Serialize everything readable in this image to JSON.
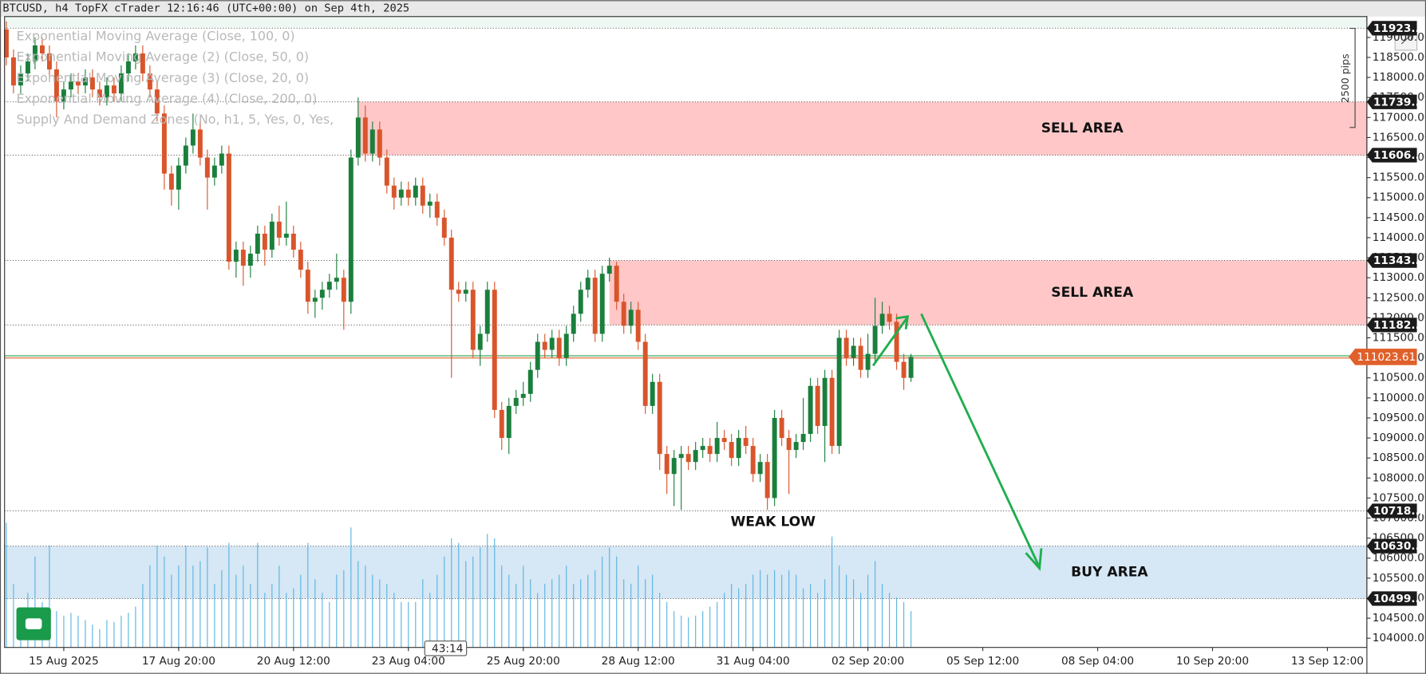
{
  "chart_data": {
    "type": "candlestick",
    "title": "BTCUSD, h4 TopFX cTrader 12:16:46 (UTC+00:00) on Sep 4th, 2025",
    "indicators": [
      "Exponential Moving Average (Close, 100, 0)",
      "Exponential Moving Average (2) (Close, 50, 0)",
      "Exponential Moving Average (3) (Close, 20, 0)",
      "Exponential Moving Average (4) (Close, 200, 0)",
      "Supply And Demand Zones (No, h1, 5, Yes, 0, Yes,"
    ],
    "up_color": "#1a7f3c",
    "down_color": "#d9552b",
    "volume_color": "#5ab4e0",
    "x": [
      "2025-08-13T20:00",
      "2025-08-14T00:00",
      "2025-08-14T04:00",
      "2025-08-14T08:00",
      "2025-08-14T12:00",
      "2025-08-14T16:00",
      "2025-08-14T20:00",
      "2025-08-15T00:00",
      "2025-08-15T04:00",
      "2025-08-15T08:00",
      "2025-08-15T12:00",
      "2025-08-15T16:00",
      "2025-08-15T20:00",
      "2025-08-16T00:00",
      "2025-08-16T04:00",
      "2025-08-16T08:00",
      "2025-08-16T12:00",
      "2025-08-16T16:00",
      "2025-08-16T20:00",
      "2025-08-17T00:00",
      "2025-08-17T04:00",
      "2025-08-17T08:00",
      "2025-08-17T12:00",
      "2025-08-17T16:00",
      "2025-08-17T20:00",
      "2025-08-18T00:00",
      "2025-08-18T04:00",
      "2025-08-18T08:00",
      "2025-08-18T12:00",
      "2025-08-18T16:00",
      "2025-08-18T20:00",
      "2025-08-19T00:00",
      "2025-08-19T04:00",
      "2025-08-19T08:00",
      "2025-08-19T12:00",
      "2025-08-19T16:00",
      "2025-08-19T20:00",
      "2025-08-20T00:00",
      "2025-08-20T04:00",
      "2025-08-20T08:00",
      "2025-08-20T12:00",
      "2025-08-20T16:00",
      "2025-08-20T20:00",
      "2025-08-21T00:00",
      "2025-08-21T04:00",
      "2025-08-21T08:00",
      "2025-08-21T12:00",
      "2025-08-21T16:00",
      "2025-08-21T20:00",
      "2025-08-22T00:00",
      "2025-08-22T04:00",
      "2025-08-22T08:00",
      "2025-08-22T12:00",
      "2025-08-22T16:00",
      "2025-08-22T20:00",
      "2025-08-23T00:00",
      "2025-08-23T04:00",
      "2025-08-23T08:00",
      "2025-08-23T12:00",
      "2025-08-23T16:00",
      "2025-08-23T20:00",
      "2025-08-24T00:00",
      "2025-08-24T04:00",
      "2025-08-24T08:00",
      "2025-08-24T12:00",
      "2025-08-24T16:00",
      "2025-08-24T20:00",
      "2025-08-25T00:00",
      "2025-08-25T04:00",
      "2025-08-25T08:00",
      "2025-08-25T12:00",
      "2025-08-25T16:00",
      "2025-08-25T20:00",
      "2025-08-26T00:00",
      "2025-08-26T04:00",
      "2025-08-26T08:00",
      "2025-08-26T12:00",
      "2025-08-26T16:00",
      "2025-08-26T20:00",
      "2025-08-27T00:00",
      "2025-08-27T04:00",
      "2025-08-27T08:00",
      "2025-08-27T12:00",
      "2025-08-27T16:00",
      "2025-08-27T20:00",
      "2025-08-28T00:00",
      "2025-08-28T04:00",
      "2025-08-28T08:00",
      "2025-08-28T12:00",
      "2025-08-28T16:00",
      "2025-08-28T20:00",
      "2025-08-29T00:00",
      "2025-08-29T04:00",
      "2025-08-29T08:00",
      "2025-08-29T12:00",
      "2025-08-29T16:00",
      "2025-08-29T20:00",
      "2025-08-30T00:00",
      "2025-08-30T04:00",
      "2025-08-30T08:00",
      "2025-08-30T12:00",
      "2025-08-30T16:00",
      "2025-08-30T20:00",
      "2025-08-31T00:00",
      "2025-08-31T04:00",
      "2025-08-31T08:00",
      "2025-08-31T12:00",
      "2025-08-31T16:00",
      "2025-08-31T20:00",
      "2025-09-01T00:00",
      "2025-09-01T04:00",
      "2025-09-01T08:00",
      "2025-09-01T12:00",
      "2025-09-01T16:00",
      "2025-09-01T20:00",
      "2025-09-02T00:00",
      "2025-09-02T04:00",
      "2025-09-02T08:00",
      "2025-09-02T12:00",
      "2025-09-02T16:00",
      "2025-09-02T20:00",
      "2025-09-03T00:00",
      "2025-09-03T04:00",
      "2025-09-03T08:00",
      "2025-09-03T12:00",
      "2025-09-03T16:00",
      "2025-09-03T20:00"
    ],
    "ohlc": [
      [
        119200,
        119400,
        118300,
        118500
      ],
      [
        118500,
        118700,
        117600,
        117800
      ],
      [
        117800,
        118300,
        117600,
        118100
      ],
      [
        118100,
        118600,
        117900,
        118400
      ],
      [
        118400,
        119000,
        118200,
        118800
      ],
      [
        118800,
        119000,
        118400,
        118600
      ],
      [
        118600,
        118800,
        118000,
        118200
      ],
      [
        118200,
        118400,
        117000,
        117400
      ],
      [
        117400,
        117900,
        117200,
        117700
      ],
      [
        117700,
        118100,
        117500,
        117900
      ],
      [
        117900,
        118100,
        117600,
        117800
      ],
      [
        117800,
        118200,
        117600,
        118000
      ],
      [
        118000,
        118200,
        117500,
        117700
      ],
      [
        117700,
        117900,
        117300,
        117500
      ],
      [
        117500,
        118000,
        117300,
        117800
      ],
      [
        117800,
        118000,
        117400,
        117600
      ],
      [
        117600,
        118300,
        117400,
        118100
      ],
      [
        118100,
        118600,
        117900,
        118400
      ],
      [
        118400,
        118800,
        118200,
        118600
      ],
      [
        118600,
        118800,
        117900,
        118100
      ],
      [
        118100,
        118300,
        117500,
        117700
      ],
      [
        117700,
        117900,
        116900,
        117100
      ],
      [
        117100,
        117300,
        115200,
        115600
      ],
      [
        115600,
        115800,
        114800,
        115200
      ],
      [
        115200,
        116000,
        114700,
        115800
      ],
      [
        115800,
        116500,
        115600,
        116300
      ],
      [
        116300,
        117100,
        116100,
        116700
      ],
      [
        116700,
        116900,
        115800,
        116000
      ],
      [
        116000,
        116200,
        114700,
        115500
      ],
      [
        115500,
        116000,
        115300,
        115800
      ],
      [
        115800,
        116300,
        115600,
        116100
      ],
      [
        116100,
        116300,
        113200,
        113400
      ],
      [
        113400,
        113900,
        113000,
        113700
      ],
      [
        113700,
        113900,
        112800,
        113300
      ],
      [
        113300,
        113800,
        113000,
        113600
      ],
      [
        113600,
        114300,
        113400,
        114100
      ],
      [
        114100,
        114300,
        113300,
        113700
      ],
      [
        113700,
        114600,
        113500,
        114400
      ],
      [
        114400,
        114800,
        113800,
        114000
      ],
      [
        114000,
        114900,
        113800,
        114100
      ],
      [
        114100,
        114300,
        113500,
        113700
      ],
      [
        113700,
        113900,
        113000,
        113200
      ],
      [
        113200,
        113400,
        112100,
        112400
      ],
      [
        112400,
        112700,
        112000,
        112500
      ],
      [
        112500,
        112900,
        112200,
        112700
      ],
      [
        112700,
        113100,
        112500,
        112900
      ],
      [
        112900,
        113600,
        112700,
        113000
      ],
      [
        113000,
        113200,
        111700,
        112400
      ],
      [
        112400,
        116200,
        112100,
        116000
      ],
      [
        116000,
        117500,
        115800,
        117000
      ],
      [
        117000,
        117300,
        115900,
        116100
      ],
      [
        116100,
        116900,
        115900,
        116700
      ],
      [
        116700,
        116900,
        115800,
        116000
      ],
      [
        116000,
        116200,
        115100,
        115300
      ],
      [
        115300,
        115500,
        114700,
        115000
      ],
      [
        115000,
        115400,
        114800,
        115200
      ],
      [
        115200,
        115400,
        114800,
        115000
      ],
      [
        115000,
        115500,
        114800,
        115300
      ],
      [
        115300,
        115500,
        114600,
        114800
      ],
      [
        114800,
        115100,
        114500,
        114900
      ],
      [
        114900,
        115100,
        114300,
        114500
      ],
      [
        114500,
        114700,
        113800,
        114000
      ],
      [
        114000,
        114200,
        110500,
        112700
      ],
      [
        112700,
        112900,
        112400,
        112600
      ],
      [
        112600,
        112900,
        112400,
        112700
      ],
      [
        112700,
        112900,
        111000,
        111200
      ],
      [
        111200,
        111800,
        110800,
        111600
      ],
      [
        111600,
        112900,
        111400,
        112700
      ],
      [
        112700,
        112900,
        109500,
        109700
      ],
      [
        109700,
        109900,
        108700,
        109000
      ],
      [
        109000,
        110000,
        108600,
        109800
      ],
      [
        109800,
        110200,
        109600,
        110000
      ],
      [
        110000,
        110400,
        109800,
        110100
      ],
      [
        110100,
        110900,
        109900,
        110700
      ],
      [
        110700,
        111600,
        110500,
        111400
      ],
      [
        111400,
        111600,
        111000,
        111200
      ],
      [
        111200,
        111700,
        111000,
        111500
      ],
      [
        111500,
        111700,
        110800,
        111000
      ],
      [
        111000,
        111800,
        110800,
        111600
      ],
      [
        111600,
        112300,
        111400,
        112100
      ],
      [
        112100,
        112900,
        111900,
        112700
      ],
      [
        112700,
        113200,
        112500,
        113000
      ],
      [
        113000,
        113200,
        111400,
        111600
      ],
      [
        111600,
        113300,
        111400,
        113100
      ],
      [
        113100,
        113500,
        112900,
        113300
      ],
      [
        113300,
        113400,
        112200,
        112400
      ],
      [
        112400,
        112600,
        111600,
        111800
      ],
      [
        111800,
        112400,
        111600,
        112200
      ],
      [
        112200,
        112400,
        111200,
        111400
      ],
      [
        111400,
        111600,
        109600,
        109800
      ],
      [
        109800,
        110600,
        109600,
        110400
      ],
      [
        110400,
        110600,
        108200,
        108600
      ],
      [
        108600,
        108800,
        107600,
        108100
      ],
      [
        108100,
        108700,
        107300,
        108500
      ],
      [
        108500,
        108800,
        107200,
        108600
      ],
      [
        108600,
        108800,
        108200,
        108400
      ],
      [
        108400,
        108900,
        108200,
        108700
      ],
      [
        108700,
        109000,
        108500,
        108800
      ],
      [
        108800,
        109000,
        108400,
        108600
      ],
      [
        108600,
        109400,
        108400,
        109000
      ],
      [
        109000,
        109200,
        108700,
        108900
      ],
      [
        108900,
        109100,
        108300,
        108500
      ],
      [
        108500,
        109200,
        108300,
        109000
      ],
      [
        109000,
        109300,
        108600,
        108800
      ],
      [
        108800,
        109000,
        107900,
        108100
      ],
      [
        108100,
        108600,
        107900,
        108400
      ],
      [
        108400,
        108600,
        107200,
        107500
      ],
      [
        107500,
        109700,
        107300,
        109500
      ],
      [
        109500,
        109700,
        108800,
        109000
      ],
      [
        109000,
        109200,
        107600,
        108700
      ],
      [
        108700,
        109100,
        108500,
        108900
      ],
      [
        108900,
        110000,
        108700,
        109100
      ],
      [
        109100,
        110500,
        108900,
        110300
      ],
      [
        110300,
        110500,
        109100,
        109300
      ],
      [
        109300,
        110700,
        108400,
        110500
      ],
      [
        110500,
        110700,
        108600,
        108800
      ],
      [
        108800,
        111700,
        108600,
        111500
      ],
      [
        111500,
        111700,
        110800,
        111000
      ],
      [
        111000,
        111500,
        110800,
        111300
      ],
      [
        111300,
        111500,
        110500,
        110700
      ],
      [
        110700,
        111600,
        110500,
        111100
      ],
      [
        111100,
        112500,
        110900,
        111800
      ],
      [
        111800,
        112400,
        111600,
        112100
      ],
      [
        112100,
        112300,
        111700,
        111900
      ],
      [
        111900,
        112100,
        110700,
        110900
      ],
      [
        110900,
        111100,
        110200,
        110500
      ],
      [
        110500,
        111100,
        110400,
        111023.61
      ]
    ],
    "volume": [
      137,
      70,
      40,
      60,
      100,
      50,
      112,
      40,
      35,
      38,
      35,
      30,
      25,
      20,
      30,
      28,
      35,
      38,
      45,
      70,
      90,
      112,
      100,
      80,
      90,
      112,
      90,
      95,
      110,
      70,
      85,
      115,
      80,
      90,
      70,
      115,
      60,
      70,
      90,
      60,
      65,
      80,
      115,
      75,
      60,
      50,
      80,
      85,
      132,
      95,
      90,
      80,
      75,
      70,
      60,
      50,
      50,
      50,
      75,
      60,
      80,
      100,
      120,
      115,
      95,
      100,
      110,
      125,
      120,
      90,
      80,
      70,
      90,
      75,
      60,
      70,
      75,
      80,
      90,
      70,
      75,
      80,
      85,
      100,
      110,
      100,
      75,
      70,
      90,
      75,
      80,
      60,
      50,
      40,
      35,
      33,
      35,
      40,
      45,
      50,
      60,
      70,
      65,
      70,
      80,
      85,
      80,
      85,
      80,
      85,
      80,
      65,
      70,
      60,
      75,
      122,
      90,
      80,
      75,
      60,
      80,
      95,
      70,
      60,
      55,
      50,
      40
    ],
    "ylim": [
      103770,
      119520
    ],
    "yticks": [
      {
        "value": 104000,
        "label": "104000.00"
      },
      {
        "value": 104500,
        "label": "104500.00"
      },
      {
        "value": 105000,
        "label": "105000.00"
      },
      {
        "value": 105500,
        "label": "105500.00"
      },
      {
        "value": 106000,
        "label": "106000.00"
      },
      {
        "value": 106500,
        "label": "106500.00"
      },
      {
        "value": 107000,
        "label": "107000.00"
      },
      {
        "value": 107500,
        "label": "107500.00"
      },
      {
        "value": 108000,
        "label": "108000.00"
      },
      {
        "value": 108500,
        "label": "108500.00"
      },
      {
        "value": 109000,
        "label": "109000.00"
      },
      {
        "value": 109500,
        "label": "109500.00"
      },
      {
        "value": 110000,
        "label": "110000.00"
      },
      {
        "value": 110500,
        "label": "110500.00"
      },
      {
        "value": 111000,
        "label": "111000.00"
      },
      {
        "value": 111500,
        "label": "111500.00"
      },
      {
        "value": 112000,
        "label": "112000.00"
      },
      {
        "value": 112500,
        "label": "112500.00"
      },
      {
        "value": 113000,
        "label": "113000.00"
      },
      {
        "value": 113500,
        "label": "113500.00"
      },
      {
        "value": 114000,
        "label": "114000.00"
      },
      {
        "value": 114500,
        "label": "114500.00"
      },
      {
        "value": 115000,
        "label": "115000.00"
      },
      {
        "value": 115500,
        "label": "115500.00"
      },
      {
        "value": 116000,
        "label": "116000.00"
      },
      {
        "value": 116500,
        "label": "116500.00"
      },
      {
        "value": 117000,
        "label": "117000.00"
      },
      {
        "value": 117500,
        "label": "117500.00"
      },
      {
        "value": 118000,
        "label": "118000.00"
      },
      {
        "value": 118500,
        "label": "118500.00"
      },
      {
        "value": 119000,
        "label": "119000.00"
      }
    ],
    "xlim": [
      "2025-08-13T19:00",
      "2025-09-14T10:00"
    ],
    "xticks": [
      {
        "value": "2025-08-15T04:00",
        "label": "15 Aug 2025"
      },
      {
        "value": "2025-08-17T20:00",
        "label": "17 Aug 20:00"
      },
      {
        "value": "2025-08-20T12:00",
        "label": "20 Aug 12:00"
      },
      {
        "value": "2025-08-23T04:00",
        "label": "23 Aug 04:00"
      },
      {
        "value": "2025-08-25T20:00",
        "label": "25 Aug 20:00"
      },
      {
        "value": "2025-08-28T12:00",
        "label": "28 Aug 12:00"
      },
      {
        "value": "2025-08-31T04:00",
        "label": "31 Aug 04:00"
      },
      {
        "value": "2025-09-02T20:00",
        "label": "02 Sep 20:00"
      },
      {
        "value": "2025-09-05T12:00",
        "label": "05 Sep 12:00"
      },
      {
        "value": "2025-09-08T04:00",
        "label": "08 Sep 04:00"
      },
      {
        "value": "2025-09-10T20:00",
        "label": "10 Sep 20:00"
      },
      {
        "value": "2025-09-13T12:00",
        "label": "13 Sep 12:00"
      }
    ],
    "levels": [
      {
        "value": 119230,
        "label": "11923..."
      },
      {
        "value": 117390,
        "label": "11739..."
      },
      {
        "value": 116060,
        "label": "11606..."
      },
      {
        "value": 113430,
        "label": "11343..."
      },
      {
        "value": 111820,
        "label": "11182..."
      },
      {
        "value": 107180,
        "label": "10718..."
      },
      {
        "value": 106300,
        "label": "10630..."
      },
      {
        "value": 104990,
        "label": "10499..."
      }
    ],
    "current_price": 111023.61,
    "zones": [
      {
        "name": "SELL AREA",
        "low": 116060,
        "high": 117390,
        "start": "2025-08-22T00:00"
      },
      {
        "name": "SELL AREA",
        "low": 111820,
        "high": 113430,
        "start": "2025-08-27T20:00"
      },
      {
        "name": "BUY AREA",
        "low": 104990,
        "high": 106300
      }
    ],
    "annotations": [
      "WEAK LOW",
      "2500 pips"
    ],
    "countdown": "43:14"
  }
}
